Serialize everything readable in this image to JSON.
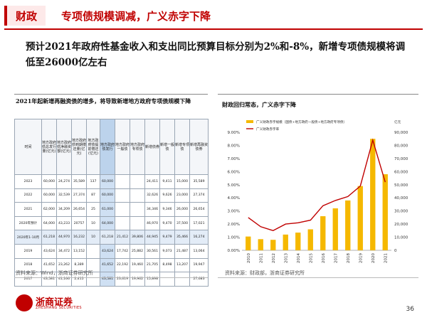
{
  "header": {
    "section": "财政",
    "title": "专项债规模调减，广义赤字下降"
  },
  "summary": "预计2021年政府性基金收入和支出同比预算目标分别为2%和-8%，新增专项债规模将调低至26000亿左右",
  "left_panel": {
    "title": "2021年起新增再融资债的增多，将导致新增地方政府专项债规模下降",
    "columns": [
      "时间",
      "地方政府债总发行量(亿元)",
      "地方政府债净融资额(亿元)",
      "地方政府债到期偿还量(亿元)",
      "地方政府债提前偿还(亿元)",
      "地方政府债发行",
      "地方政府一般债",
      "地方政府专项债",
      "新增债券",
      "新增一般债",
      "新增专项债",
      "新增再融资债券"
    ],
    "rows": [
      [
        "2023",
        "60,000",
        "24,274",
        "35,589",
        "137",
        "60,000",
        "",
        "",
        "24,411",
        "9,411",
        "15,000",
        "35,589"
      ],
      [
        "2022",
        "60,000",
        "32,539",
        "27,374",
        "87",
        "60,000",
        "",
        "",
        "32,626",
        "9,626",
        "23,000",
        "27,374"
      ],
      [
        "2021",
        "62,000",
        "34,209",
        "26,654",
        "25",
        "61,000",
        "",
        "",
        "34,346",
        "9,346",
        "26,000",
        "26,654"
      ],
      [
        "2020年预计",
        "64,000",
        "43,233",
        "20757",
        "10",
        "64,000",
        "",
        "",
        "46,970",
        "9,470",
        "37,500",
        "17,021"
      ],
      [
        "2020年1-10月",
        "61,218",
        "44,970",
        "16,232",
        "10",
        "61,218",
        "21,412",
        "39,806",
        "44,945",
        "9,479",
        "35,466",
        "16,274"
      ],
      [
        "2019",
        "43,624",
        "34,472",
        "13,152",
        "",
        "43,624",
        "17,742",
        "25,882",
        "30,561",
        "9,073",
        "21,487",
        "13,064"
      ],
      [
        "2018",
        "41,652",
        "23,262",
        "8,389",
        "",
        "41,652",
        "22,192",
        "19,460",
        "21,705",
        "8,498",
        "13,207",
        "19,947"
      ],
      [
        "2017",
        "43,581",
        "41,166",
        "2,415",
        "",
        "43,581",
        "23,619",
        "19,962",
        "15,898",
        "",
        "",
        "27,683"
      ]
    ],
    "source": "资料来源：Wind，浙商证券研究所"
  },
  "right_panel": {
    "title": "财政回归常态，广义赤字下降",
    "source": "资料来源：财政部，浙商证券研究所"
  },
  "chart_data": {
    "type": "bar",
    "categories": [
      "2010",
      "2011",
      "2012",
      "2013",
      "2014",
      "2015",
      "2016",
      "2017",
      "2018",
      "2019",
      "2020",
      "2021"
    ],
    "series": [
      {
        "name": "广义财政赤字规模（国债+地方政府一般债+地方政府专项债）",
        "type": "bar",
        "axis": "right",
        "unit": "亿元",
        "values": [
          10500,
          8500,
          8000,
          12000,
          13500,
          16000,
          26000,
          32000,
          38000,
          49000,
          85000,
          58000
        ]
      },
      {
        "name": "广义财政赤字率",
        "type": "line",
        "axis": "left",
        "values": [
          2.5,
          1.8,
          1.5,
          2.0,
          2.1,
          2.3,
          3.4,
          3.8,
          4.1,
          4.9,
          8.4,
          5.2
        ]
      }
    ],
    "left_axis": {
      "min": 0,
      "max": 9,
      "step": 1,
      "ticks": [
        "0.00%",
        "1.00%",
        "2.00%",
        "3.00%",
        "4.00%",
        "5.00%",
        "6.00%",
        "7.00%",
        "8.00%",
        "9.00%"
      ]
    },
    "right_axis": {
      "min": 0,
      "max": 90000,
      "step": 10000,
      "ticks": [
        "0",
        "10,000",
        "20,000",
        "30,000",
        "40,000",
        "50,000",
        "60,000",
        "70,000",
        "80,000",
        "90,000"
      ]
    },
    "legend_position": "top-left",
    "colors": {
      "bar": "#f5b800",
      "line": "#c00000"
    }
  },
  "footer": {
    "logo_text": "浙商证券",
    "logo_sub": "ZHESHANG SECURITIES",
    "page_number": "36"
  }
}
